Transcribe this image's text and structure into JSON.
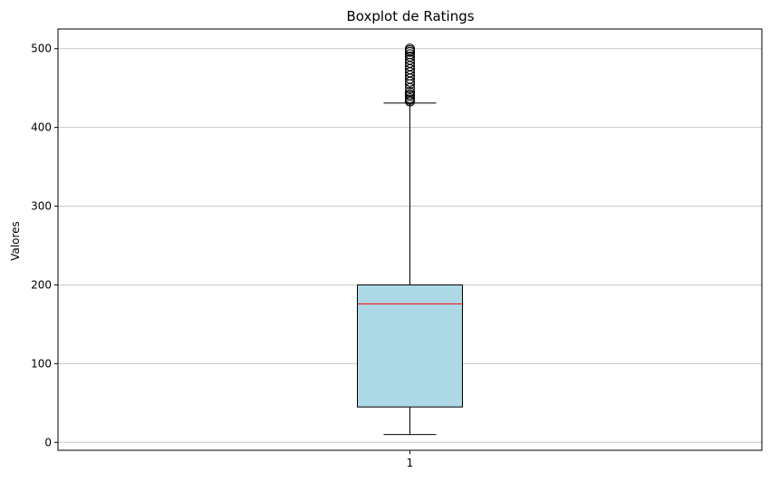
{
  "chart_data": {
    "type": "boxplot",
    "title": "Boxplot de Ratings",
    "xlabel": "",
    "ylabel": "Valores",
    "categories": [
      "1"
    ],
    "ylim": [
      -10,
      525
    ],
    "yticks": [
      0,
      100,
      200,
      300,
      400,
      500
    ],
    "grid": {
      "y": true,
      "x": false
    },
    "box": {
      "whisker_low": 10,
      "q1": 45,
      "median": 176,
      "q3": 200,
      "whisker_high": 431
    },
    "outliers": [
      433,
      435,
      437,
      440,
      442,
      445,
      450,
      455,
      458,
      462,
      466,
      470,
      474,
      478,
      482,
      486,
      490,
      493,
      496,
      498,
      500
    ],
    "colors": {
      "box_fill": "#add8e6",
      "box_edge": "#000000",
      "median": "#ff0000",
      "grid": "#c8c8c8"
    }
  }
}
